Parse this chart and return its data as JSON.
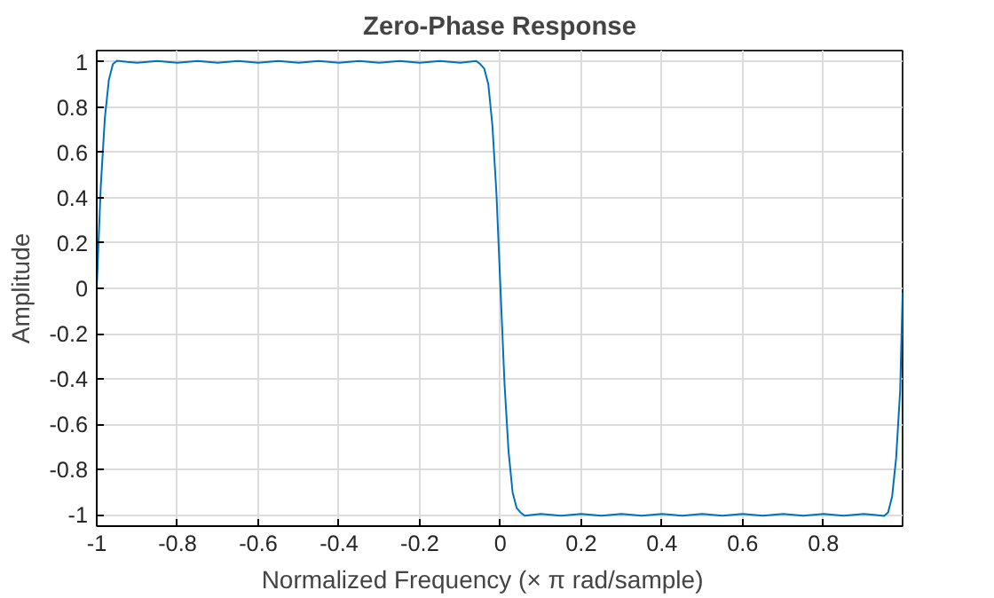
{
  "chart_data": {
    "type": "line",
    "title": "Zero-Phase Response",
    "xlabel": "Normalized  Frequency    (× π  rad/sample)",
    "ylabel": "Amplitude",
    "xlim": [
      -1,
      0.996
    ],
    "ylim": [
      -1.05,
      1.05
    ],
    "xticks": [
      -1,
      -0.8,
      -0.6,
      -0.4,
      -0.2,
      0,
      0.2,
      0.4,
      0.6,
      0.8
    ],
    "yticks": [
      -1,
      -0.8,
      -0.6,
      -0.4,
      -0.2,
      0,
      0.2,
      0.4,
      0.6,
      0.8,
      1
    ],
    "grid": true,
    "marker": "none",
    "line_style": "solid",
    "series": [
      {
        "color": "#0072bd",
        "x": [
          -1,
          -0.99,
          -0.98,
          -0.97,
          -0.96,
          -0.95,
          -0.925,
          -0.9,
          -0.85,
          -0.8,
          -0.75,
          -0.7,
          -0.65,
          -0.6,
          -0.55,
          -0.5,
          -0.45,
          -0.4,
          -0.35,
          -0.3,
          -0.25,
          -0.2,
          -0.15,
          -0.1,
          -0.06,
          -0.05,
          -0.04,
          -0.03,
          -0.02,
          -0.01,
          0,
          0.01,
          0.02,
          0.03,
          0.04,
          0.05,
          0.06,
          0.1,
          0.15,
          0.2,
          0.25,
          0.3,
          0.35,
          0.4,
          0.45,
          0.5,
          0.55,
          0.6,
          0.65,
          0.7,
          0.75,
          0.8,
          0.85,
          0.9,
          0.925,
          0.95,
          0.96,
          0.97,
          0.98,
          0.99,
          0.996
        ],
        "values": [
          0,
          0.45,
          0.75,
          0.92,
          0.99,
          1.005,
          1.0,
          0.996,
          1.004,
          0.996,
          1.004,
          0.996,
          1.004,
          0.996,
          1.004,
          0.996,
          1.004,
          0.996,
          1.004,
          0.996,
          1.004,
          0.996,
          1.004,
          0.996,
          1.004,
          0.99,
          0.97,
          0.9,
          0.72,
          0.42,
          0,
          -0.42,
          -0.72,
          -0.9,
          -0.97,
          -0.99,
          -1.004,
          -0.996,
          -1.004,
          -0.996,
          -1.004,
          -0.996,
          -1.004,
          -0.996,
          -1.004,
          -0.996,
          -1.004,
          -0.996,
          -1.004,
          -0.996,
          -1.004,
          -0.996,
          -1.004,
          -0.996,
          -1.0,
          -1.005,
          -0.99,
          -0.92,
          -0.75,
          -0.45,
          -0.02
        ]
      }
    ]
  }
}
